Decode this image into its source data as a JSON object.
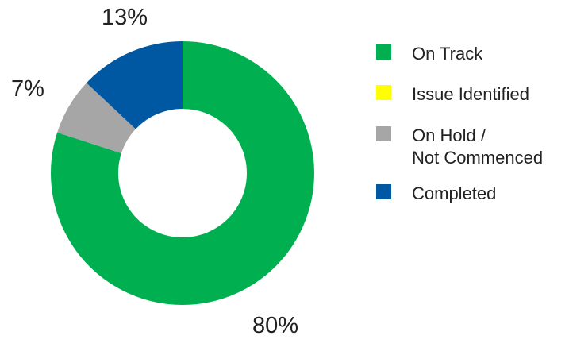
{
  "chart_data": {
    "type": "pie",
    "donut": true,
    "categories": [
      "On Track",
      "Issue Identified",
      "On Hold / Not Commenced",
      "Completed"
    ],
    "legend_lines": [
      [
        "On Track"
      ],
      [
        "Issue Identified"
      ],
      [
        "On Hold /",
        "Not Commenced"
      ],
      [
        "Completed"
      ]
    ],
    "values": [
      80,
      0,
      7,
      13
    ],
    "value_labels": [
      "80%",
      "",
      "7%",
      "13%"
    ],
    "colors": [
      "#00b050",
      "#ffff00",
      "#a6a6a6",
      "#0058a3"
    ],
    "legend_placement": "right",
    "title": ""
  }
}
